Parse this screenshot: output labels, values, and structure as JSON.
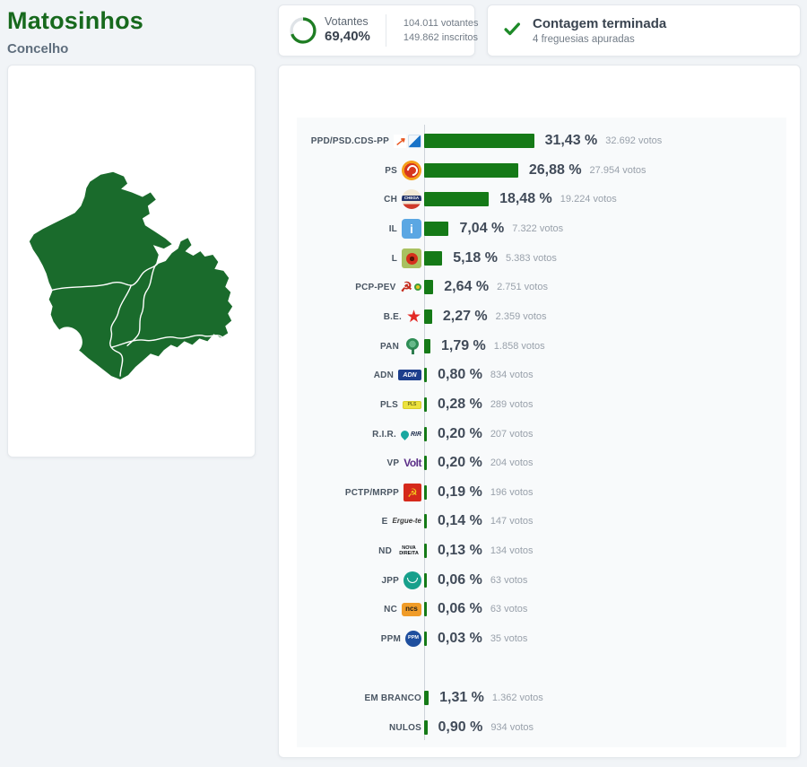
{
  "header": {
    "title": "Matosinhos",
    "subtitle": "Concelho"
  },
  "turnout_card": {
    "label": "Votantes",
    "percent": "69,40%",
    "percent_value": 69.4,
    "line1": "104.011 votantes",
    "line2": "149.862 inscritos",
    "ring_color": "#1e7d23",
    "ring_track_color": "#dfe3e7"
  },
  "status_card": {
    "title": "Contagem terminada",
    "subtitle": "4 freguesias apuradas",
    "check_icon": "checkmark-icon",
    "check_color": "#1d8a28"
  },
  "map": {
    "region": "Matosinhos",
    "fill_color": "#1a6b2c",
    "boundary_color": "#ffffff",
    "freguesias_count": 4
  },
  "chart_data": {
    "type": "bar",
    "orientation": "horizontal",
    "unit": "%",
    "bar_color": "#157a17",
    "axis_color": "#cdd3d9",
    "value_axis_hidden": true,
    "series": [
      {
        "label": "PPD/PSD.CDS-PP",
        "icon": "psd-cds",
        "icon_text": "",
        "pct": "31,43 %",
        "value": 31.43,
        "votes": "32.692 votos"
      },
      {
        "label": "PS",
        "icon": "ps",
        "icon_text": "",
        "pct": "26,88 %",
        "value": 26.88,
        "votes": "27.954 votos"
      },
      {
        "label": "CH",
        "icon": "ch",
        "icon_text": "CHEGA",
        "pct": "18,48 %",
        "value": 18.48,
        "votes": "19.224 votos"
      },
      {
        "label": "IL",
        "icon": "il",
        "icon_text": "i",
        "pct": "7,04 %",
        "value": 7.04,
        "votes": "7.322 votos"
      },
      {
        "label": "L",
        "icon": "l",
        "icon_text": "",
        "pct": "5,18 %",
        "value": 5.18,
        "votes": "5.383 votos"
      },
      {
        "label": "PCP-PEV",
        "icon": "pcp-pev",
        "icon_text": "☭",
        "pct": "2,64 %",
        "value": 2.64,
        "votes": "2.751 votos"
      },
      {
        "label": "B.E.",
        "icon": "be",
        "icon_text": "★",
        "pct": "2,27 %",
        "value": 2.27,
        "votes": "2.359 votos"
      },
      {
        "label": "PAN",
        "icon": "pan",
        "icon_text": "",
        "pct": "1,79 %",
        "value": 1.79,
        "votes": "1.858 votos"
      },
      {
        "label": "ADN",
        "icon": "adn",
        "icon_text": "ADN",
        "pct": "0,80 %",
        "value": 0.8,
        "votes": "834 votos"
      },
      {
        "label": "PLS",
        "icon": "pls",
        "icon_text": "PLS",
        "pct": "0,28 %",
        "value": 0.28,
        "votes": "289 votos"
      },
      {
        "label": "R.I.R.",
        "icon": "rir",
        "icon_text": "RIR",
        "pct": "0,20 %",
        "value": 0.2,
        "votes": "207 votos"
      },
      {
        "label": "VP",
        "icon": "vp",
        "icon_text": "Volt",
        "pct": "0,20 %",
        "value": 0.2,
        "votes": "204 votos"
      },
      {
        "label": "PCTP/MRPP",
        "icon": "pctp",
        "icon_text": "☭",
        "pct": "0,19 %",
        "value": 0.19,
        "votes": "196 votos"
      },
      {
        "label": "E",
        "icon": "e",
        "icon_text": "Ergue-te",
        "pct": "0,14 %",
        "value": 0.14,
        "votes": "147 votos"
      },
      {
        "label": "ND",
        "icon": "nd",
        "icon_text": "NOVA DIREITA",
        "pct": "0,13 %",
        "value": 0.13,
        "votes": "134 votos"
      },
      {
        "label": "JPP",
        "icon": "jpp",
        "icon_text": "",
        "pct": "0,06 %",
        "value": 0.06,
        "votes": "63 votos"
      },
      {
        "label": "NC",
        "icon": "nc",
        "icon_text": "ncs",
        "pct": "0,06 %",
        "value": 0.06,
        "votes": "63 votos"
      },
      {
        "label": "PPM",
        "icon": "ppm",
        "icon_text": "PPM",
        "pct": "0,03 %",
        "value": 0.03,
        "votes": "35 votos"
      }
    ],
    "others": [
      {
        "label": "EM BRANCO",
        "pct": "1,31 %",
        "value": 1.31,
        "votes": "1.362 votos"
      },
      {
        "label": "NULOS",
        "pct": "0,90 %",
        "value": 0.9,
        "votes": "934 votos"
      }
    ]
  }
}
